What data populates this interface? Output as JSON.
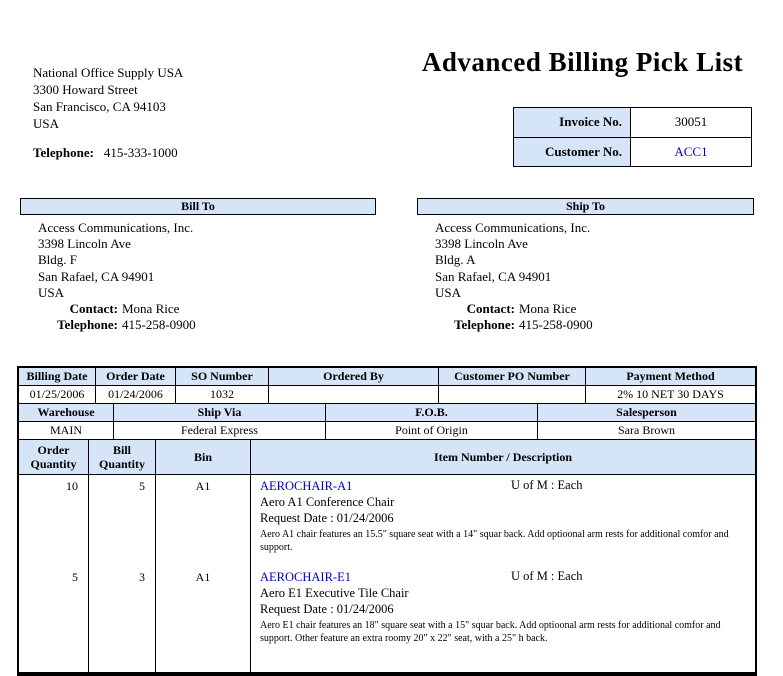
{
  "title": "Advanced Billing Pick List",
  "company": {
    "name": "National Office Supply USA",
    "address1": "3300 Howard Street",
    "address2": "San Francisco, CA 94103",
    "address3": "USA",
    "telephone_label": "Telephone:",
    "telephone": "415-333-1000"
  },
  "invoice_box": {
    "invoice_label": "Invoice No.",
    "invoice_value": "30051",
    "customer_label": "Customer No.",
    "customer_value": "ACC1"
  },
  "bill_to": {
    "header": "Bill To",
    "line1": "Access Communications, Inc.",
    "line2": "3398 Lincoln Ave",
    "line3": "Bldg. F",
    "line4": "San Rafael, CA 94901",
    "line5": "USA",
    "contact_label": "Contact:",
    "contact": "Mona Rice",
    "telephone_label": "Telephone:",
    "telephone": "415-258-0900"
  },
  "ship_to": {
    "header": "Ship To",
    "line1": "Access Communications, Inc.",
    "line2": "3398 Lincoln Ave",
    "line3": "Bldg. A",
    "line4": "San Rafael, CA 94901",
    "line5": "USA",
    "contact_label": "Contact:",
    "contact": "Mona Rice",
    "telephone_label": "Telephone:",
    "telephone": "415-258-0900"
  },
  "order_info": {
    "row1_headers": [
      "Billing Date",
      "Order Date",
      "SO Number",
      "Ordered By",
      "Customer PO Number",
      "Payment Method"
    ],
    "row1_values": [
      "01/25/2006",
      "01/24/2006",
      "1032",
      "",
      "",
      "2% 10 NET 30 DAYS"
    ],
    "row2_headers": [
      "Warehouse",
      "Ship Via",
      "F.O.B.",
      "Salesperson"
    ],
    "row2_values": [
      "MAIN",
      "Federal Express",
      "Point of Origin",
      "Sara Brown"
    ]
  },
  "items_table": {
    "headers": [
      "Order Quantity",
      "Bill Quantity",
      "Bin",
      "Item Number / Description"
    ],
    "items": [
      {
        "order_qty": "10",
        "bill_qty": "5",
        "bin": "A1",
        "item_number": "AEROCHAIR-A1",
        "uom": "U of M : Each",
        "description": "Aero A1 Conference Chair",
        "request_date": "Request Date : 01/24/2006",
        "details": "Aero A1 chair features an 15.5\" square seat with a 14\" squar back.  Add optioonal arm rests for additional comfor and support."
      },
      {
        "order_qty": "5",
        "bill_qty": "3",
        "bin": "A1",
        "item_number": "AEROCHAIR-E1",
        "uom": "U of M : Each",
        "description": "Aero E1 Executive Tile Chair",
        "request_date": "Request Date : 01/24/2006",
        "details": "Aero E1 chair features an 18\" square seat with a 15\" squar back.  Add optioonal arm rests for additional comfor and support.  Other feature an extra roomy 20\" x 22\" seat, with a 25\" h back."
      }
    ]
  },
  "colors": {
    "header_bg": "#d6e4f7",
    "link": "#0000cc",
    "border": "#000000"
  }
}
